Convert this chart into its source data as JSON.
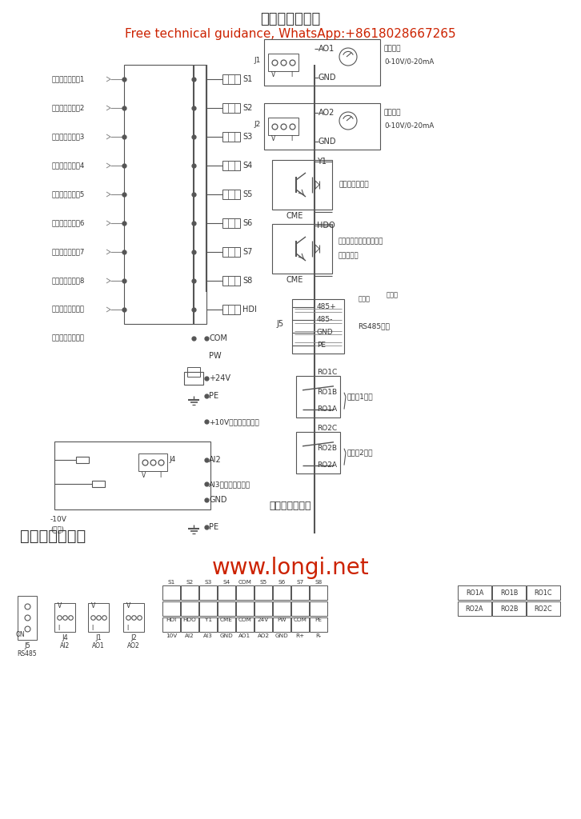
{
  "title": "控制回路接线图",
  "subtitle": "Free technical guidance, WhatsApp:+8618028667265",
  "bottom_title": "控制回路接线图",
  "section2_title": "控制端子示意图",
  "website": "www.longi.net",
  "bg_color": "#ffffff",
  "gray": "#555555",
  "lgray": "#888888",
  "red_color": "#cc2200",
  "left_labels": [
    "多功能输入端子1",
    "多功能输入端子2",
    "多功能输入端子3",
    "多功能输入端子4",
    "多功能输入端子5",
    "多功能输入端子6",
    "多功能输入端子7",
    "多功能输入端子8",
    "高速脉冲输入和集",
    "电极开路输入可选"
  ],
  "term_labels": [
    "S1",
    "S2",
    "S3",
    "S4",
    "S5",
    "S6",
    "S7",
    "S8",
    "HDI"
  ],
  "row1": [
    "S1",
    "S2",
    "S3",
    "S4",
    "COM",
    "S5",
    "S6",
    "S7",
    "S8"
  ],
  "row2": [
    "HDI",
    "HDO",
    "Y1",
    "CME",
    "COM",
    "24V",
    "PW",
    "COM",
    "PE"
  ],
  "row3": [
    "10V",
    "AI2",
    "AI3",
    "GND",
    "AO1",
    "AO2",
    "GND",
    "R+",
    "R-"
  ],
  "ro1": [
    "RO1A",
    "RO1B",
    "RO1C"
  ],
  "ro2": [
    "RO2A",
    "RO2B",
    "RO2C"
  ]
}
